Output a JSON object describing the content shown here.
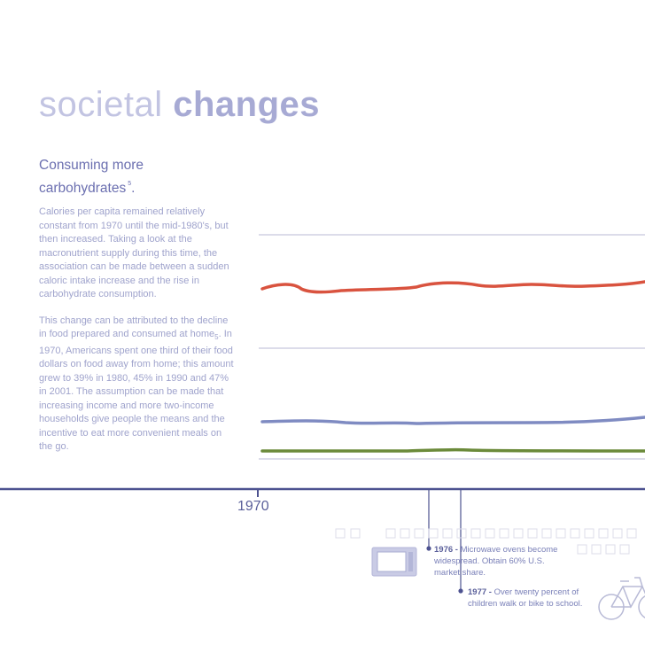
{
  "title": {
    "light": "societal",
    "bold": "changes"
  },
  "subtitle": {
    "text": "Consuming more carbohydrates",
    "superscript": "5",
    "trailing": "."
  },
  "paragraphs": [
    "Calories per capita remained relatively constant from 1970 until the mid-1980's, but then increased. Taking a look at the macronutrient supply during this time, the association can be made between a sudden caloric intake increase and the rise in carbohydrate consumption.",
    "This change can be attributed to the decline in food prepared and consumed at home"
  ],
  "paragraph2_ref": "5",
  "paragraph2_rest": ". In 1970, Americans spent one third of their food dollars on food away from home; this amount grew to 39% in 1980, 45% in 1990 and 47% in 2001. The assumption can be made that increasing income and more two-income households give people the means and the incentive to eat more convenient meals on the go.",
  "timeline": {
    "year": "1970",
    "events": [
      {
        "year": "1976",
        "sep": " - ",
        "text": "Microwave ovens become widespread. Obtain 60% U.S. market share.",
        "icon": "microwave-icon"
      },
      {
        "year": "1977",
        "sep": " - ",
        "text": "Over twenty percent of children walk or bike to school.",
        "icon": "bicycle-icon"
      }
    ]
  },
  "chart_data": {
    "type": "line",
    "series": [
      {
        "color": "#d9533f",
        "values": [
          0.62,
          0.58,
          0.6,
          0.6,
          0.59,
          0.58,
          0.57,
          0.56,
          0.57,
          0.56,
          0.55,
          0.55,
          0.55,
          0.55,
          0.54,
          0.54,
          0.5,
          0.5,
          0.52,
          0.52,
          0.52,
          0.5,
          0.51,
          0.52,
          0.51,
          0.51,
          0.51,
          0.5,
          0.5,
          0.48
        ]
      },
      {
        "color": "#7f8bc2",
        "values": [
          0.66,
          0.66,
          0.67,
          0.68,
          0.68,
          0.7,
          0.7,
          0.69,
          0.7,
          0.7,
          0.7,
          0.69,
          0.69,
          0.69,
          0.69,
          0.69,
          0.69,
          0.69,
          0.69,
          0.69,
          0.69,
          0.68,
          0.67,
          0.67,
          0.66,
          0.66,
          0.65,
          0.65,
          0.65,
          0.64
        ]
      },
      {
        "color": "#6b8a3a",
        "values": [
          0.4,
          0.4,
          0.4,
          0.4,
          0.4,
          0.4,
          0.4,
          0.4,
          0.4,
          0.4,
          0.4,
          0.4,
          0.4,
          0.4,
          0.41,
          0.41,
          0.4,
          0.4,
          0.4,
          0.4,
          0.4,
          0.4,
          0.4,
          0.4,
          0.4,
          0.4,
          0.4,
          0.4,
          0.4,
          0.4
        ]
      }
    ],
    "grid": true
  },
  "colors": {
    "timeline": "#4d5290",
    "grid": "#b8bad6",
    "accent": "#a7aad4"
  }
}
